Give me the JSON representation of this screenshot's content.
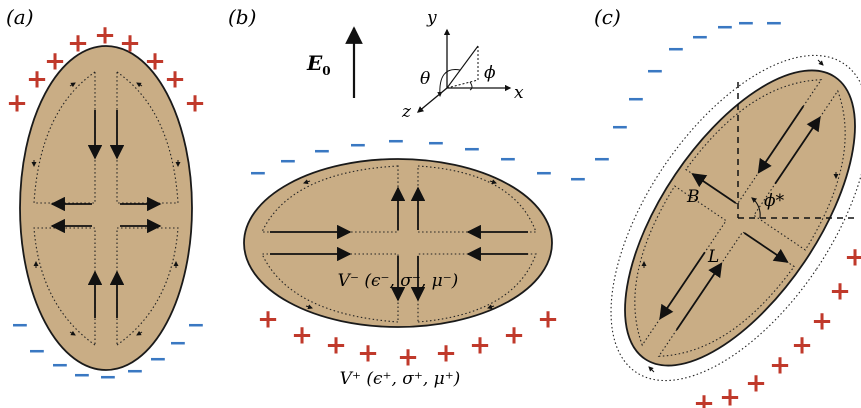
{
  "panels": {
    "a": {
      "label": "(a)"
    },
    "b": {
      "label": "(b)"
    },
    "c": {
      "label": "(c)"
    }
  },
  "field": {
    "symbol": "E",
    "subscript": "0"
  },
  "axes": {
    "x": "x",
    "y": "y",
    "z": "z",
    "theta": "θ",
    "phi": "ϕ"
  },
  "regions": {
    "inner": "V⁻ (ϵ⁻, σ⁻, μ⁻)",
    "outer": "V⁺ (ϵ⁺, σ⁺, μ⁺)"
  },
  "panel_c": {
    "B": "B",
    "L": "L",
    "angle": "ϕ*"
  },
  "charges": {
    "plus": "+",
    "minus": "−"
  },
  "colors": {
    "drop_fill": "#c9ad85",
    "drop_stroke": "#1a1a1a",
    "plus": "#c0392b",
    "minus": "#3a78c2"
  }
}
